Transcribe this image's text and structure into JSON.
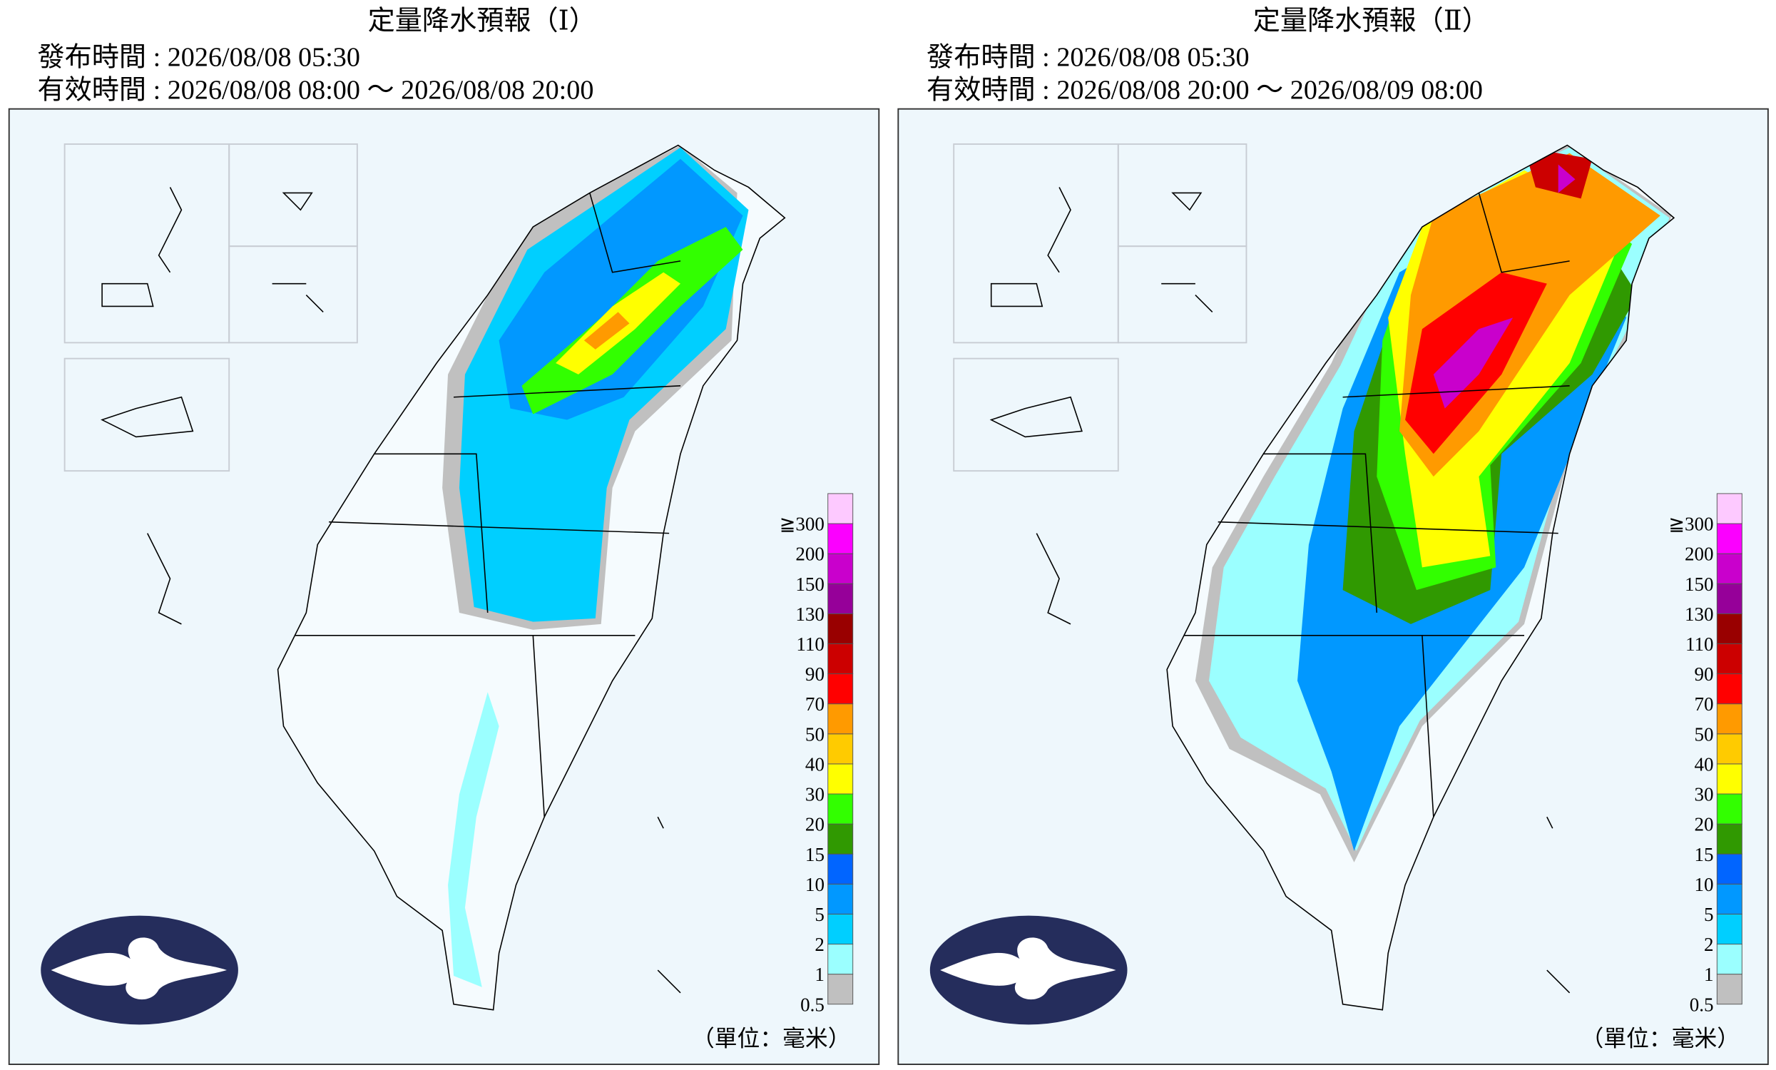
{
  "panels": [
    {
      "title": "定量降水預報（Ⅰ）",
      "issued": "發布時間 : 2026/08/08 05:30",
      "valid": "有效時間 : 2026/08/08 08:00 ～ 2026/08/08 20:00",
      "unit": "（單位：毫米）"
    },
    {
      "title": "定量降水預報（Ⅱ）",
      "issued": "發布時間 : 2026/08/08 05:30",
      "valid": "有效時間 : 2026/08/08 20:00 ～ 2026/08/09 08:00",
      "unit": "（單位：毫米）"
    }
  ],
  "legend": {
    "labels": [
      "0.5",
      "1",
      "2",
      "5",
      "10",
      "15",
      "20",
      "30",
      "40",
      "50",
      "70",
      "90",
      "110",
      "130",
      "150",
      "200",
      "≧300"
    ],
    "colors": [
      "#c0c0c0",
      "#9bffff",
      "#00cfff",
      "#0198ff",
      "#0165ff",
      "#309901",
      "#32ff00",
      "#ffff00",
      "#ffcb00",
      "#ff9a00",
      "#ff0000",
      "#cc0000",
      "#990000",
      "#960099",
      "#c900cc",
      "#fb00ff",
      "#fdc9ff"
    ]
  }
}
